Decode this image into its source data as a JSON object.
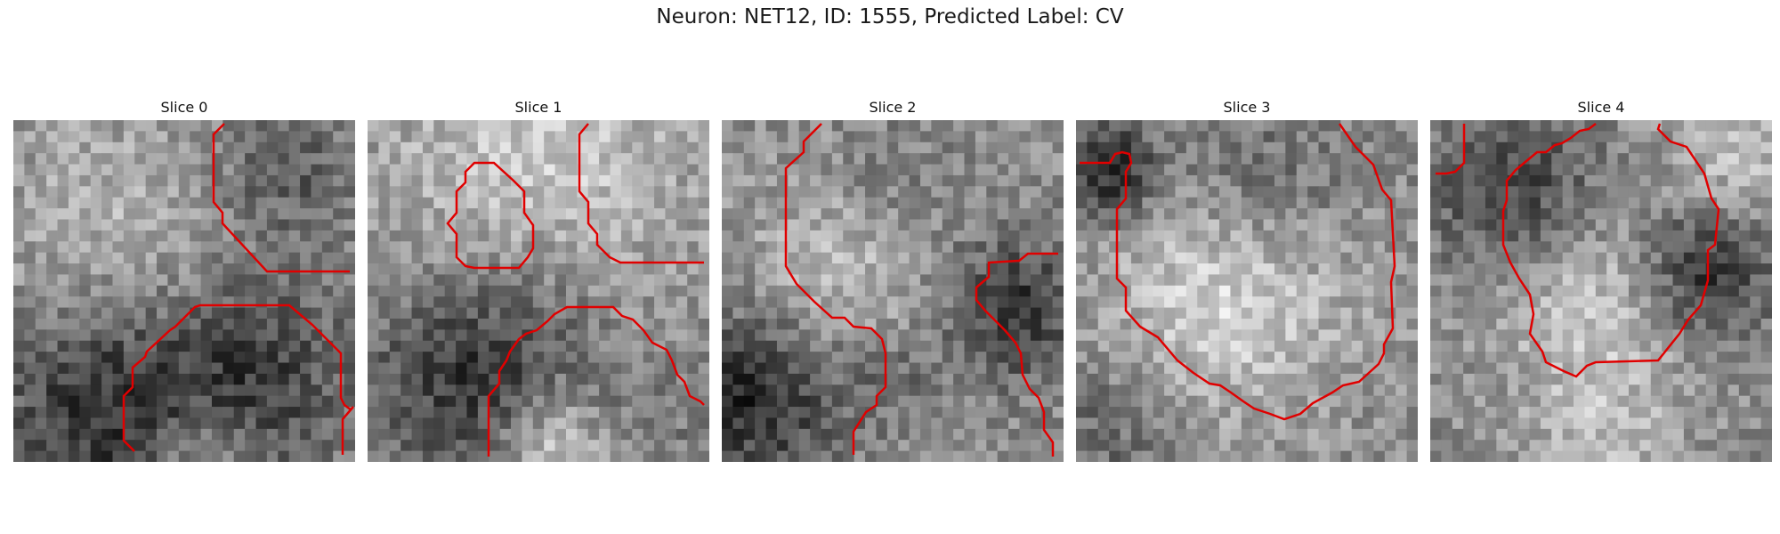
{
  "figure": {
    "title": "Neuron: NET12, ID: 1555, Predicted Label: CV"
  },
  "panels": [
    {
      "title": "Slice 0"
    },
    {
      "title": "Slice 1"
    },
    {
      "title": "Slice 2"
    },
    {
      "title": "Slice 3"
    },
    {
      "title": "Slice 4"
    }
  ],
  "colors": {
    "contour": "#e00000",
    "background": "#ffffff"
  }
}
